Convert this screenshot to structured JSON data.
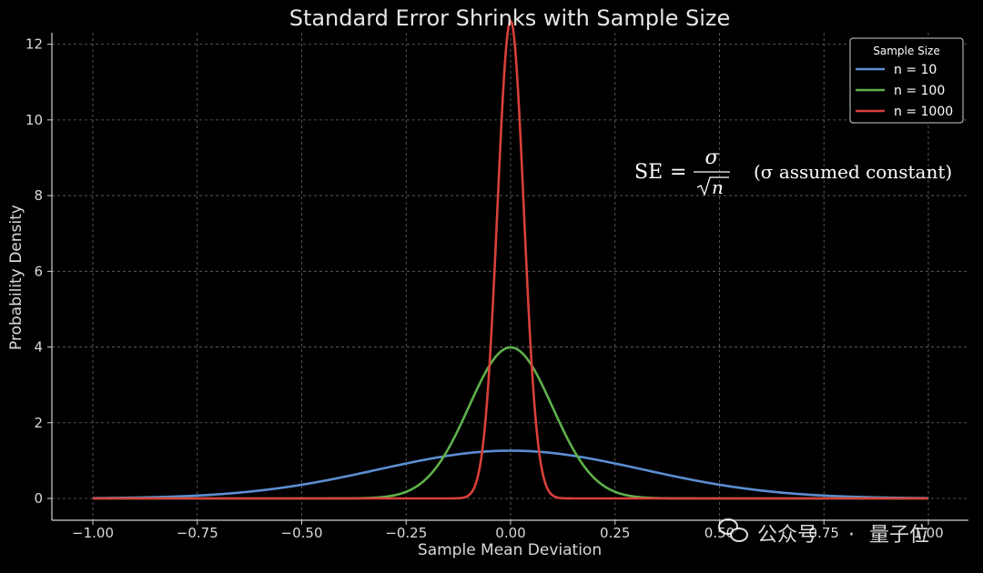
{
  "chart_data": {
    "type": "line",
    "title": "Standard Error Shrinks with Sample Size",
    "xlabel": "Sample Mean Deviation",
    "ylabel": "Probability Density",
    "xlim": [
      -1.0,
      1.0
    ],
    "ylim": [
      0,
      13
    ],
    "x_ticks": [
      -1.0,
      -0.75,
      -0.5,
      -0.25,
      0.0,
      0.25,
      0.5,
      0.75,
      1.0
    ],
    "x_tick_labels": [
      "−1.00",
      "−0.75",
      "−0.50",
      "−0.25",
      "0.00",
      "0.25",
      "0.50",
      "0.75",
      "1.00"
    ],
    "y_ticks": [
      0,
      2,
      4,
      6,
      8,
      10,
      12
    ],
    "y_tick_labels": [
      "0",
      "2",
      "4",
      "6",
      "8",
      "10",
      "12"
    ],
    "grid": true,
    "legend": {
      "title": "Sample Size",
      "position": "top-right",
      "entries": [
        "n = 10",
        "n = 100",
        "n = 1000"
      ]
    },
    "series": [
      {
        "name": "n = 10",
        "color": "#5b8fd1",
        "distribution": "normal",
        "mean": 0,
        "sd": 0.3162,
        "peak": 1.26
      },
      {
        "name": "n = 100",
        "color": "#5fb04c",
        "distribution": "normal",
        "mean": 0,
        "sd": 0.1,
        "peak": 3.99
      },
      {
        "name": "n = 1000",
        "color": "#d9403a",
        "distribution": "normal",
        "mean": 0,
        "sd": 0.03162,
        "peak": 12.62
      }
    ],
    "annotations": [
      {
        "lhs": "SE",
        "numerator": "σ",
        "denominator": "n",
        "note": "(σ assumed constant)"
      }
    ]
  },
  "watermark": {
    "dot": "·",
    "left": "公众号",
    "right": "量子位"
  }
}
